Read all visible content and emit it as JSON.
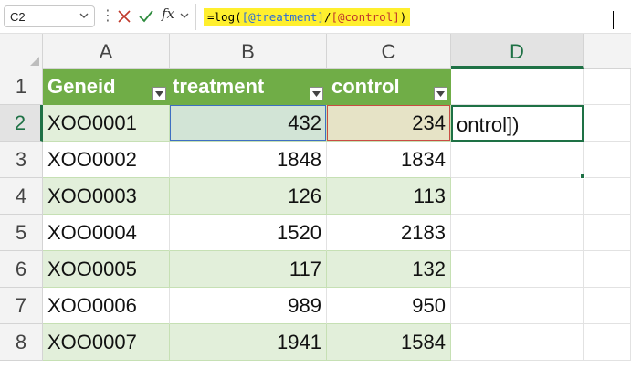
{
  "formula_bar": {
    "name_box": "C2",
    "sep": "⋮",
    "fx": "fx",
    "formula_prefix": "=log(",
    "formula_ref1": "[@treatment]",
    "formula_mid": "/",
    "formula_ref2": "[@control]",
    "formula_suffix": ")"
  },
  "columns": [
    "A",
    "B",
    "C",
    "D"
  ],
  "rows": [
    "1",
    "2",
    "3",
    "4",
    "5",
    "6",
    "7",
    "8"
  ],
  "table": {
    "headers": [
      "Geneid",
      "treatment",
      "control"
    ],
    "data": [
      [
        "XOO0001",
        "432",
        "234"
      ],
      [
        "XOO0002",
        "1848",
        "1834"
      ],
      [
        "XOO0003",
        "126",
        "113"
      ],
      [
        "XOO0004",
        "1520",
        "2183"
      ],
      [
        "XOO0005",
        "117",
        "132"
      ],
      [
        "XOO0006",
        "989",
        "950"
      ],
      [
        "XOO0007",
        "1941",
        "1584"
      ]
    ]
  },
  "editing_cell": {
    "overflow_text": "ontrol])"
  },
  "colors": {
    "header_fill": "#70ad47",
    "band_fill": "#e2efda",
    "formula_highlight": "#ffef2e",
    "active_border": "#1e7145"
  }
}
